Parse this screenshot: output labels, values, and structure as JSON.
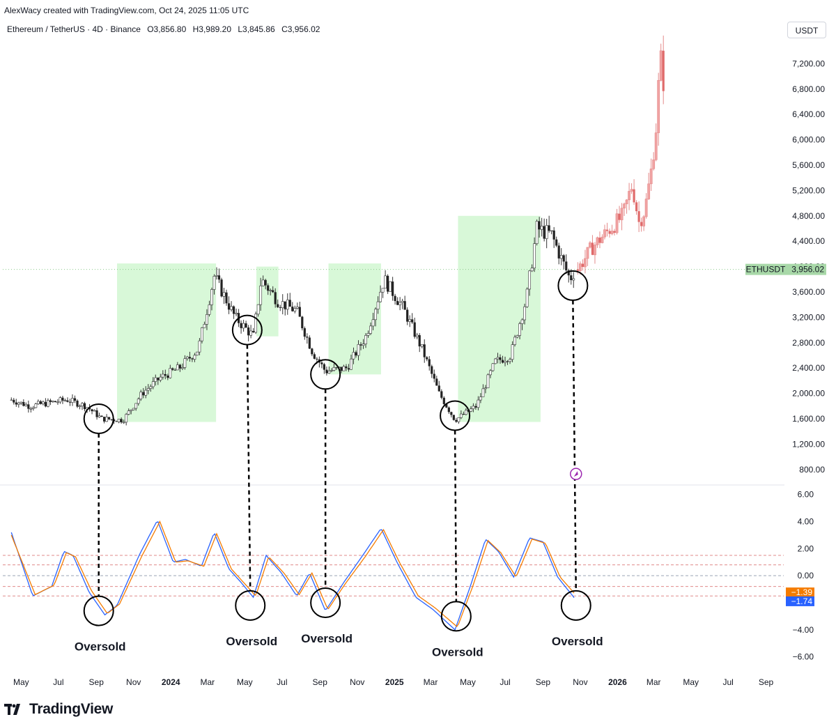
{
  "header": {
    "credit": "AlexWacy created with TradingView.com, Oct 24, 2025 11:05 UTC",
    "symbol": "Ethereum / TetherUS · 4D · Binance",
    "open": "O3,856.80",
    "high": "H3,989.20",
    "low": "L3,845.86",
    "close": "C3,956.02",
    "currency": "USDT"
  },
  "footer": {
    "brand": "TradingView",
    "logo_icon": "tradingview-logo-icon"
  },
  "chart_data": [
    {
      "type": "candlestick",
      "title": "",
      "symbol": "ETHUSDT",
      "last_price_label": "3,956.02",
      "last_price": 3956.02,
      "ylim": [
        600,
        7600
      ],
      "yticks": [
        800,
        1200,
        1600,
        2000,
        2400,
        2800,
        3200,
        3600,
        4000,
        4400,
        4800,
        5200,
        5600,
        6000,
        6400,
        6800,
        7200
      ],
      "ytick_labels": [
        "800.00",
        "1,200.00",
        "1,600.00",
        "2,000.00",
        "2,400.00",
        "2,800.00",
        "3,200.00",
        "3,600.00",
        "4,000.00",
        "4,400.00",
        "4,800.00",
        "5,200.00",
        "5,600.00",
        "6,000.00",
        "6,400.00",
        "6,800.00",
        "7,200.00"
      ],
      "x_labels": [
        "May",
        "Jul",
        "Sep",
        "Nov",
        "2024",
        "Mar",
        "May",
        "Jul",
        "Sep",
        "Nov",
        "2025",
        "Mar",
        "May",
        "Jul",
        "Sep",
        "Nov",
        "2026",
        "Mar",
        "May",
        "Jul",
        "Sep"
      ],
      "price_path": {
        "dates": [
          "2023-04-15",
          "2023-05-15",
          "2023-06-15",
          "2023-07-15",
          "2023-08-15",
          "2023-09-10",
          "2023-10-15",
          "2023-11-15",
          "2023-12-15",
          "2024-01-15",
          "2024-02-15",
          "2024-03-12",
          "2024-04-15",
          "2024-05-15",
          "2024-05-28",
          "2024-06-25",
          "2024-07-25",
          "2024-08-20",
          "2024-09-10",
          "2024-10-15",
          "2024-11-15",
          "2024-12-15",
          "2025-01-15",
          "2025-02-15",
          "2025-03-15",
          "2025-04-10",
          "2025-05-15",
          "2025-06-15",
          "2025-07-10",
          "2025-08-05",
          "2025-08-22",
          "2025-09-15",
          "2025-10-15",
          "2025-10-24"
        ],
        "values": [
          1900,
          1800,
          1850,
          1900,
          1800,
          1600,
          1580,
          2000,
          2250,
          2400,
          2700,
          3850,
          3200,
          2900,
          3800,
          3450,
          3300,
          2650,
          2350,
          2400,
          2900,
          3800,
          3350,
          2700,
          2000,
          1580,
          1800,
          2500,
          2600,
          3500,
          4600,
          4500,
          3800,
          3956
        ]
      },
      "projection": {
        "dates": [
          "2025-10-28",
          "2025-11-20",
          "2025-12-20",
          "2026-01-10",
          "2026-01-25",
          "2026-02-05",
          "2026-02-15",
          "2026-02-25",
          "2026-03-05",
          "2026-03-10",
          "2026-03-15",
          "2026-03-18"
        ],
        "values": [
          3956,
          4300,
          4600,
          4800,
          5300,
          4700,
          4900,
          5500,
          6200,
          7000,
          7400,
          6700
        ]
      },
      "shaded_zones": [
        {
          "start": "2023-10-05",
          "end": "2024-03-15",
          "low": 1550,
          "high": 4050
        },
        {
          "start": "2024-05-20",
          "end": "2024-06-25",
          "low": 2900,
          "high": 4000
        },
        {
          "start": "2024-09-15",
          "end": "2024-12-10",
          "low": 2300,
          "high": 4050
        },
        {
          "start": "2025-04-15",
          "end": "2025-08-28",
          "low": 1550,
          "high": 4800
        }
      ],
      "circles": [
        {
          "date": "2023-09-05",
          "value": 1600
        },
        {
          "date": "2024-05-05",
          "value": 3000
        },
        {
          "date": "2024-09-10",
          "value": 2300
        },
        {
          "date": "2025-04-10",
          "value": 1650
        },
        {
          "date": "2025-10-20",
          "value": 3700
        }
      ]
    },
    {
      "type": "line",
      "title": "",
      "ylim": [
        -7,
        6.5
      ],
      "yticks": [
        -6,
        -4,
        -2,
        0,
        2,
        4,
        6
      ],
      "ytick_labels": [
        "−6.00",
        "−4.00",
        "−2.00",
        "0.00",
        "2.00",
        "4.00",
        "6.00"
      ],
      "reference_lines": [
        1.5,
        0.8,
        0,
        -0.8,
        -1.5
      ],
      "last_value_labels": [
        {
          "label": "−1.39",
          "value": -1.39,
          "color": "#f57c00"
        },
        {
          "label": "−1.74",
          "value": -1.74,
          "color": "#2962ff"
        }
      ],
      "series": [
        {
          "color": "#2962ff",
          "dates": [
            "2023-04-15",
            "2023-05-20",
            "2023-06-20",
            "2023-07-10",
            "2023-07-25",
            "2023-08-20",
            "2023-09-15",
            "2023-10-05",
            "2023-11-10",
            "2023-12-10",
            "2024-01-05",
            "2024-01-25",
            "2024-02-20",
            "2024-03-12",
            "2024-04-05",
            "2024-04-25",
            "2024-05-15",
            "2024-06-05",
            "2024-06-30",
            "2024-07-25",
            "2024-08-15",
            "2024-09-10",
            "2024-10-10",
            "2024-11-10",
            "2024-12-10",
            "2025-01-05",
            "2025-02-05",
            "2025-03-05",
            "2025-04-10",
            "2025-05-05",
            "2025-05-30",
            "2025-06-20",
            "2025-07-15",
            "2025-08-10",
            "2025-09-01",
            "2025-09-25",
            "2025-10-24"
          ],
          "values": [
            3.2,
            -1.5,
            -0.8,
            1.8,
            1.5,
            -1.2,
            -2.9,
            -2.2,
            1.5,
            4.1,
            1.0,
            1.2,
            0.7,
            3.2,
            0.5,
            -0.5,
            -1.6,
            1.5,
            0.2,
            -1.5,
            0.2,
            -2.6,
            -0.5,
            1.5,
            3.5,
            1.0,
            -1.6,
            -2.5,
            -4.0,
            -0.8,
            2.7,
            1.8,
            -0.1,
            2.8,
            2.5,
            -0.1,
            -1.74
          ]
        },
        {
          "color": "#f57c00",
          "dates": [
            "2023-04-15",
            "2023-05-24",
            "2023-06-24",
            "2023-07-14",
            "2023-07-29",
            "2023-08-24",
            "2023-09-19",
            "2023-10-09",
            "2023-11-14",
            "2023-12-14",
            "2024-01-09",
            "2024-01-29",
            "2024-02-24",
            "2024-03-16",
            "2024-04-09",
            "2024-04-29",
            "2024-05-19",
            "2024-06-09",
            "2024-07-04",
            "2024-07-29",
            "2024-08-19",
            "2024-09-14",
            "2024-10-14",
            "2024-11-14",
            "2024-12-14",
            "2025-01-09",
            "2025-02-09",
            "2025-03-09",
            "2025-04-14",
            "2025-05-09",
            "2025-06-03",
            "2025-06-24",
            "2025-07-19",
            "2025-08-14",
            "2025-09-05",
            "2025-09-29",
            "2025-10-24"
          ],
          "values": [
            3.0,
            -1.4,
            -0.7,
            1.7,
            1.4,
            -1.1,
            -2.8,
            -2.1,
            1.4,
            4.0,
            1.0,
            1.1,
            0.7,
            3.1,
            0.5,
            -0.5,
            -1.5,
            1.4,
            0.2,
            -1.4,
            0.2,
            -2.5,
            -0.5,
            1.4,
            3.4,
            1.0,
            -1.5,
            -2.4,
            -3.8,
            -0.8,
            2.6,
            1.7,
            -0.1,
            2.7,
            2.4,
            -0.1,
            -1.39
          ]
        }
      ],
      "annotations": [
        {
          "date": "2023-09-05",
          "value": -2.6,
          "label": "Oversold"
        },
        {
          "date": "2024-05-10",
          "value": -2.2,
          "label": "Oversold"
        },
        {
          "date": "2024-09-10",
          "value": -2.0,
          "label": "Oversold"
        },
        {
          "date": "2025-04-12",
          "value": -3.0,
          "label": "Oversold"
        },
        {
          "date": "2025-10-25",
          "value": -2.2,
          "label": "Oversold"
        }
      ]
    }
  ]
}
